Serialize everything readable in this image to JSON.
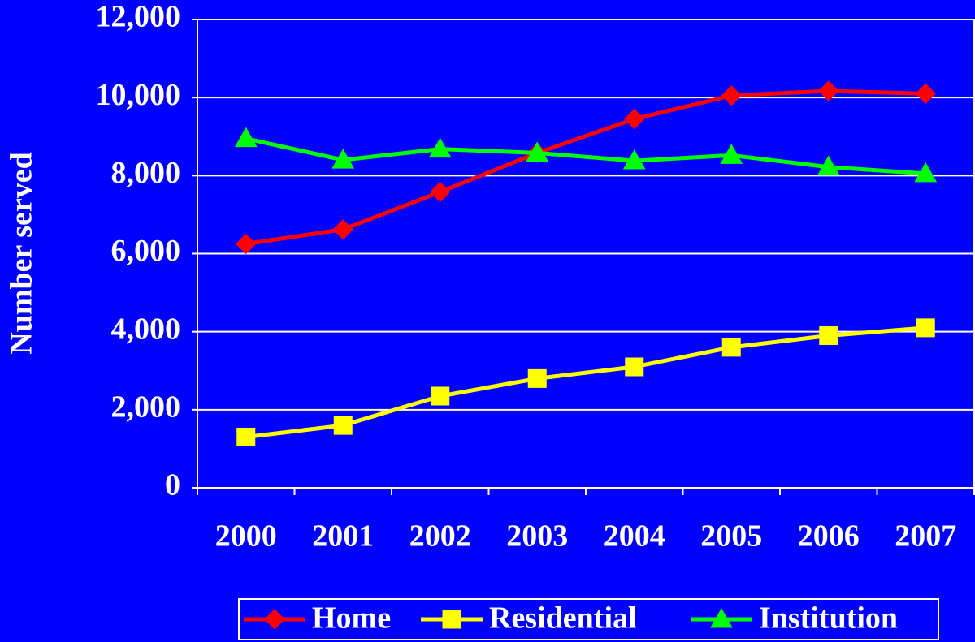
{
  "chart_data": {
    "type": "line",
    "y_label": "Number served",
    "categories": [
      "2000",
      "2001",
      "2002",
      "2003",
      "2004",
      "2005",
      "2006",
      "2007"
    ],
    "series": [
      {
        "name": "Home",
        "color": "#ff0000",
        "marker": "diamond",
        "values": [
          6250,
          6620,
          7580,
          8580,
          9450,
          10050,
          10170,
          10100
        ]
      },
      {
        "name": "Residential",
        "color": "#ffff00",
        "marker": "square",
        "values": [
          1300,
          1600,
          2350,
          2800,
          3100,
          3600,
          3900,
          4100
        ]
      },
      {
        "name": "Institution",
        "color": "#00ff00",
        "marker": "triangle",
        "values": [
          8950,
          8400,
          8680,
          8580,
          8380,
          8520,
          8220,
          8050
        ]
      }
    ],
    "ylim": [
      0,
      12000
    ],
    "yticks": [
      0,
      {
        "value": 2000,
        "label": "2,000"
      },
      {
        "value": 4000,
        "label": "4,000"
      },
      {
        "value": 6000,
        "label": "6,000"
      },
      {
        "value": 8000,
        "label": "8,000"
      },
      {
        "value": 10000,
        "label": "10,000"
      },
      {
        "value": 12000,
        "label": "12,000"
      }
    ],
    "grid": true,
    "legend": "bottom"
  }
}
